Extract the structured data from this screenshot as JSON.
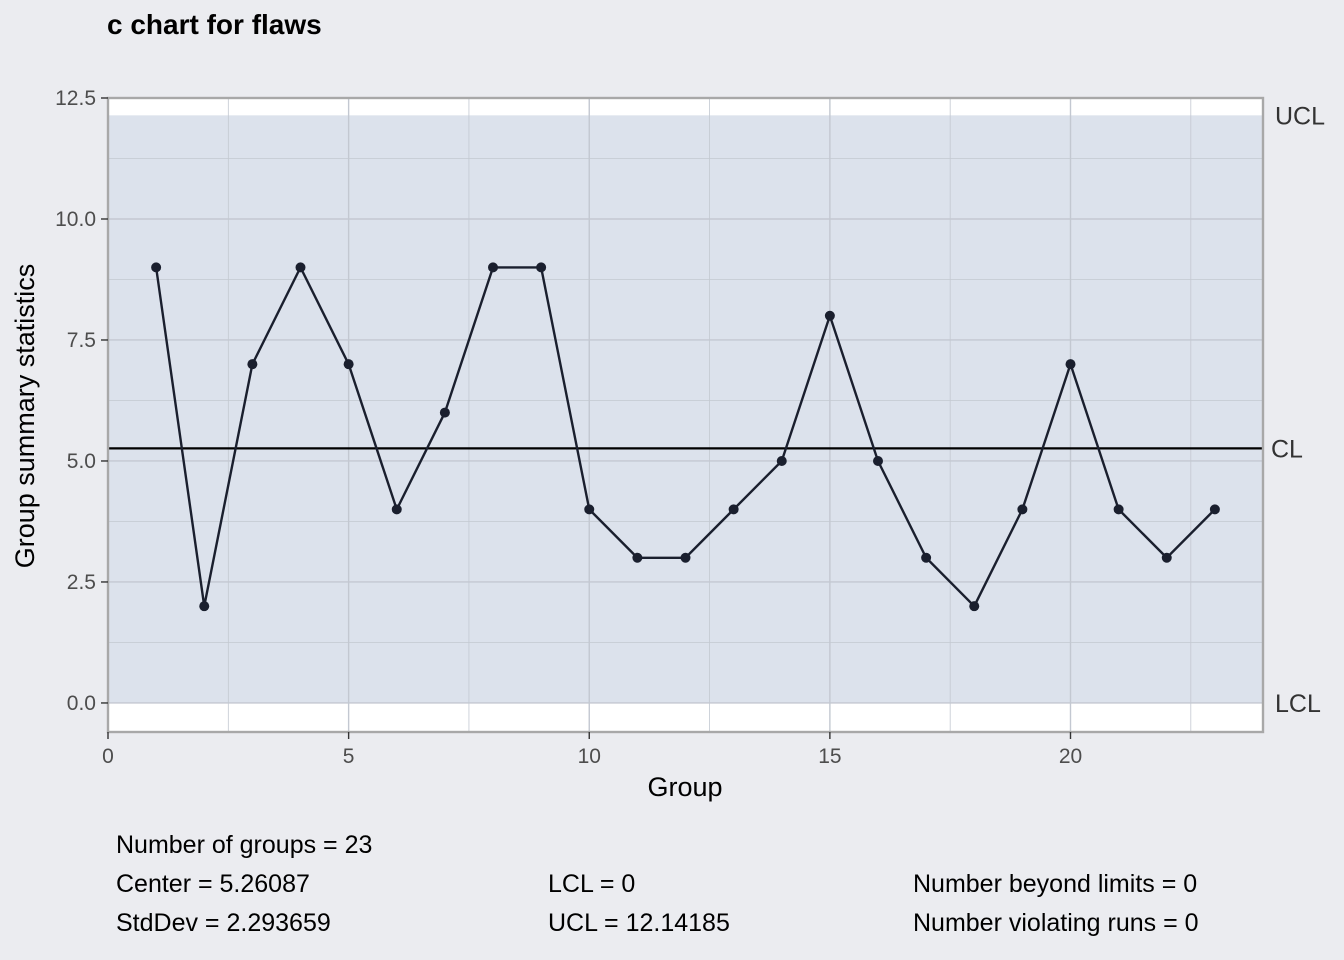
{
  "chart_data": {
    "type": "line",
    "title": "c chart for flaws",
    "xlabel": "Group",
    "ylabel": "Group summary statistics",
    "x": [
      1,
      2,
      3,
      4,
      5,
      6,
      7,
      8,
      9,
      10,
      11,
      12,
      13,
      14,
      15,
      16,
      17,
      18,
      19,
      20,
      21,
      22,
      23
    ],
    "values": [
      9,
      2,
      7,
      9,
      7,
      4,
      6,
      9,
      9,
      4,
      3,
      3,
      4,
      5,
      8,
      5,
      3,
      2,
      4,
      7,
      4,
      3,
      4
    ],
    "xlim": [
      0,
      24
    ],
    "ylim": [
      -0.6,
      12.5
    ],
    "x_ticks": [
      0,
      5,
      10,
      15,
      20
    ],
    "x_tick_labels": [
      "0",
      "5",
      "10",
      "15",
      "20"
    ],
    "y_ticks": [
      0,
      2.5,
      5,
      7.5,
      10,
      12.5
    ],
    "y_tick_labels": [
      "0.0",
      "2.5",
      "5.0",
      "7.5",
      "10.0",
      "12.5"
    ],
    "center_line": 5.26087,
    "lcl": 0,
    "ucl": 12.14185,
    "limit_labels": {
      "ucl": "UCL",
      "cl": "CL",
      "lcl": "LCL"
    },
    "grid": true,
    "colors": {
      "background": "#ebecf0",
      "panel": "#ffffff",
      "control_band": "#dce2ec",
      "grid": "#c3c8d1",
      "line": "#1a1f2e",
      "center": "#000000",
      "border": "#a8a8a8"
    }
  },
  "stats": {
    "groups": "Number of groups = 23",
    "center": "Center = 5.26087",
    "stddev": "StdDev = 2.293659",
    "lcl": "LCL = 0",
    "ucl": "UCL = 12.14185",
    "beyond": "Number beyond limits = 0",
    "violating": "Number violating runs = 0"
  }
}
